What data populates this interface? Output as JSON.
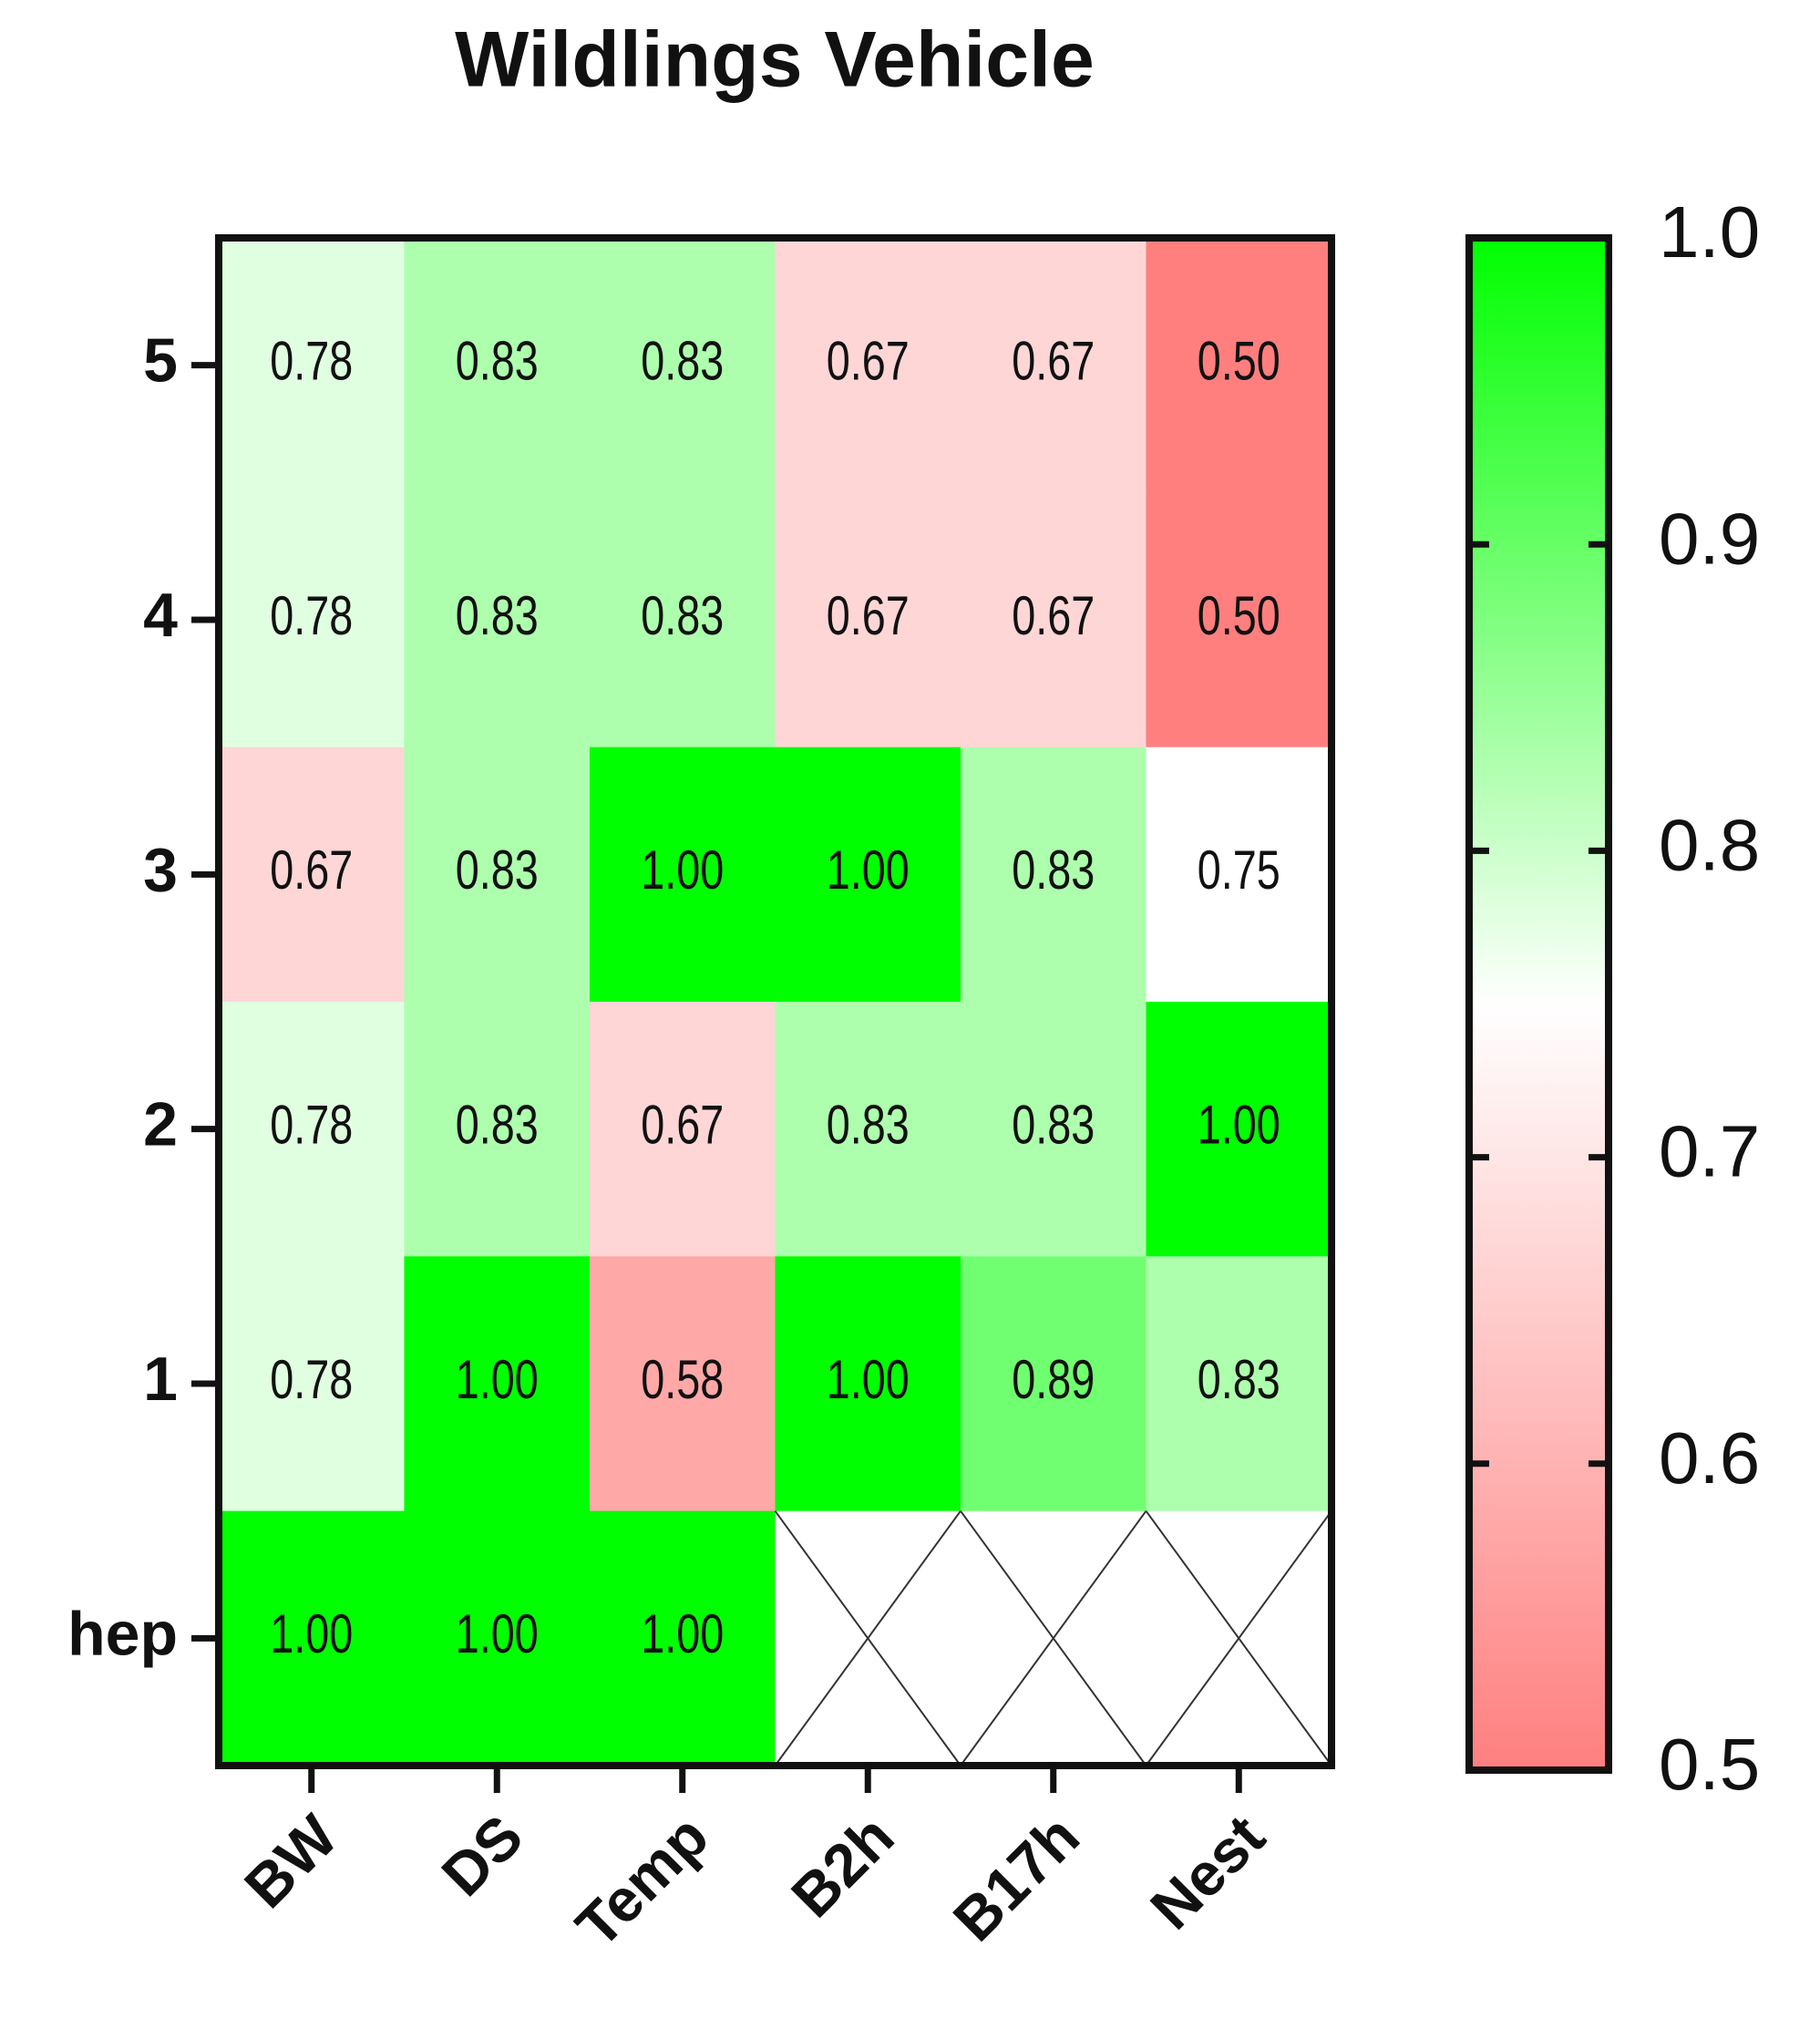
{
  "chart_data": {
    "type": "heatmap",
    "title": "Wildlings Vehicle",
    "x_categories": [
      "BW",
      "DS",
      "Temp",
      "B2h",
      "B17h",
      "Nest"
    ],
    "y_categories": [
      "5",
      "4",
      "3",
      "2",
      "1",
      "hep"
    ],
    "values": [
      [
        0.78,
        0.83,
        0.83,
        0.67,
        0.67,
        0.5
      ],
      [
        0.78,
        0.83,
        0.83,
        0.67,
        0.67,
        0.5
      ],
      [
        0.67,
        0.83,
        1,
        1,
        0.83,
        0.75
      ],
      [
        0.78,
        0.83,
        0.67,
        0.83,
        0.83,
        1
      ],
      [
        0.78,
        1,
        0.58,
        1,
        0.89,
        0.83
      ],
      [
        1,
        1,
        1,
        null,
        null,
        null
      ]
    ],
    "value_labels": [
      [
        "0.78",
        "0.83",
        "0.83",
        "0.67",
        "0.67",
        "0.50"
      ],
      [
        "0.78",
        "0.83",
        "0.83",
        "0.67",
        "0.67",
        "0.50"
      ],
      [
        "0.67",
        "0.83",
        "1.00",
        "1.00",
        "0.83",
        "0.75"
      ],
      [
        "0.78",
        "0.83",
        "0.67",
        "0.83",
        "0.83",
        "1.00"
      ],
      [
        "0.78",
        "1.00",
        "0.58",
        "1.00",
        "0.89",
        "0.83"
      ],
      [
        "1.00",
        "1.00",
        "1.00",
        null,
        null,
        null
      ]
    ],
    "colors": [
      "#ff7f7f",
      "#ffffff",
      "#00ff00"
    ],
    "zlim": [
      0.5,
      1
    ],
    "zticks": [
      0.5,
      0.6,
      0.7,
      0.8,
      0.9,
      {
        "value": 1,
        "label": "1.0"
      }
    ]
  }
}
